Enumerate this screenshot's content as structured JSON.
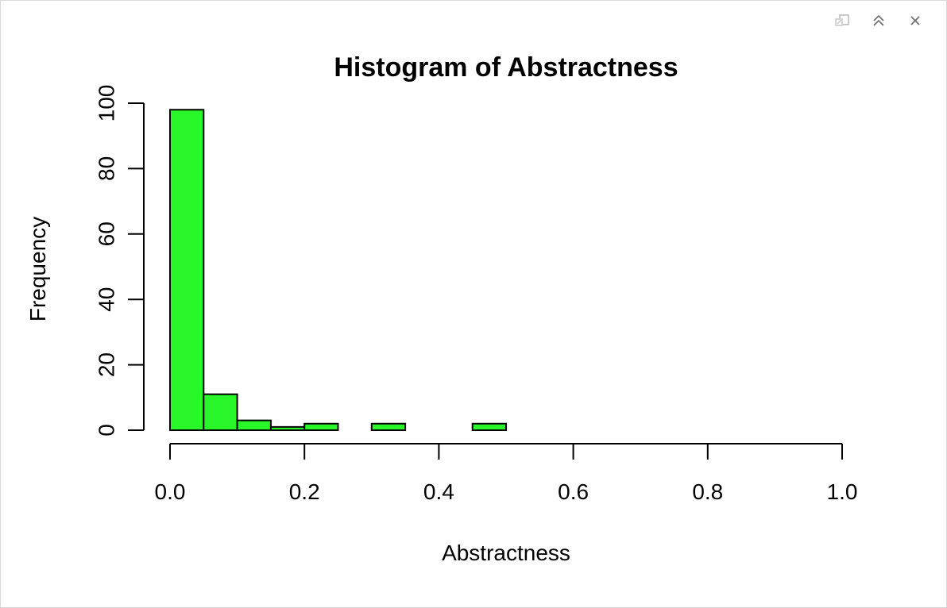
{
  "toolbar": {
    "icons": [
      "popout-icon",
      "maximize-icon",
      "close-icon"
    ]
  },
  "chart_data": {
    "type": "bar",
    "title": "Histogram of Abstractness",
    "xlabel": "Abstractness",
    "ylabel": "Frequency",
    "bins": [
      {
        "x0": 0.0,
        "x1": 0.05,
        "count": 98
      },
      {
        "x0": 0.05,
        "x1": 0.1,
        "count": 11
      },
      {
        "x0": 0.1,
        "x1": 0.15,
        "count": 3
      },
      {
        "x0": 0.15,
        "x1": 0.2,
        "count": 1
      },
      {
        "x0": 0.2,
        "x1": 0.25,
        "count": 2
      },
      {
        "x0": 0.25,
        "x1": 0.3,
        "count": 0
      },
      {
        "x0": 0.3,
        "x1": 0.35,
        "count": 2
      },
      {
        "x0": 0.35,
        "x1": 0.4,
        "count": 0
      },
      {
        "x0": 0.4,
        "x1": 0.45,
        "count": 0
      },
      {
        "x0": 0.45,
        "x1": 0.5,
        "count": 2
      }
    ],
    "xlim": [
      0,
      1
    ],
    "ylim": [
      0,
      100
    ],
    "xticks": [
      0.0,
      0.2,
      0.4,
      0.6,
      0.8,
      1.0
    ],
    "xtick_labels": [
      "0.0",
      "0.2",
      "0.4",
      "0.6",
      "0.8",
      "1.0"
    ],
    "yticks": [
      0,
      20,
      40,
      60,
      80,
      100
    ],
    "ytick_labels": [
      "0",
      "20",
      "40",
      "60",
      "80",
      "100"
    ],
    "bar_color": "#2af72a",
    "bar_edge_color": "#000000",
    "grid": false
  }
}
